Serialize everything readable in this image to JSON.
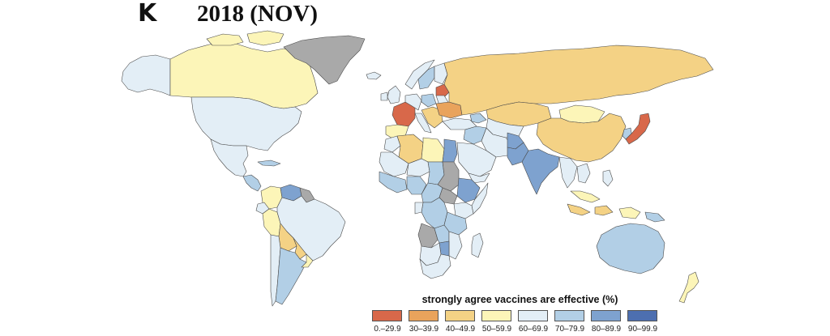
{
  "panel_letter": "K",
  "title": "2018 (NOV)",
  "legend": {
    "title": "strongly agree vaccines are effective (%)",
    "bins": [
      {
        "label": "0.–29.9",
        "color": "#d8684a"
      },
      {
        "label": "30–39.9",
        "color": "#e9a35c"
      },
      {
        "label": "40–49.9",
        "color": "#f4d285"
      },
      {
        "label": "50–59.9",
        "color": "#fcf5b8"
      },
      {
        "label": "60–69.9",
        "color": "#e3eef6"
      },
      {
        "label": "70–79.9",
        "color": "#b2cfe6"
      },
      {
        "label": "80–89.9",
        "color": "#7ea2cf"
      },
      {
        "label": "90–99.9",
        "color": "#4d6fb0"
      }
    ],
    "no_data_color": "#a9a9a9"
  },
  "colors": {
    "c0": "#d8684a",
    "c30": "#e9a35c",
    "c40": "#f4d285",
    "c50": "#fcf5b8",
    "c60": "#e3eef6",
    "c70": "#b2cfe6",
    "c80": "#7ea2cf",
    "c90": "#4d6fb0",
    "na": "#a9a9a9",
    "border": "#4a4a4a"
  }
}
